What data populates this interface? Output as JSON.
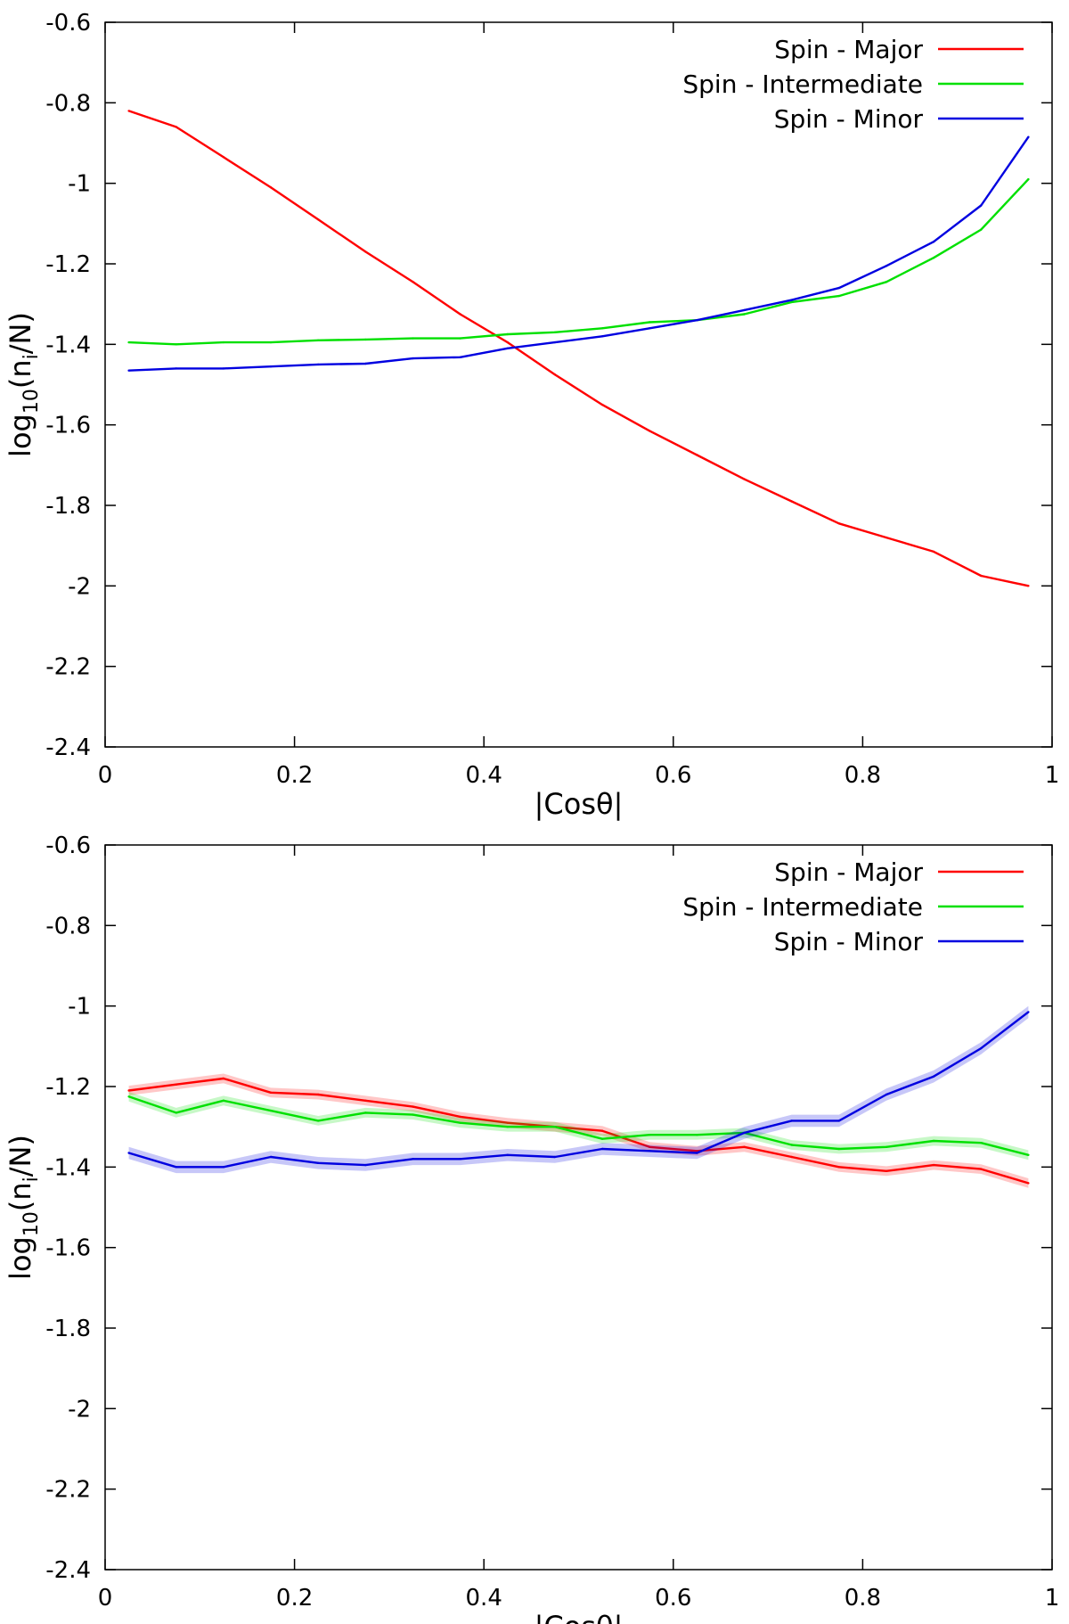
{
  "chart_data": [
    {
      "type": "line",
      "title": "",
      "xlabel": "|Cosθ|",
      "ylabel_main": "log",
      "ylabel_sub": "10",
      "ylabel_open": "(n",
      "ylabel_isub": "i",
      "ylabel_close": "/N)",
      "xlim": [
        0,
        1
      ],
      "ylim": [
        -2.4,
        -0.6
      ],
      "xticks": [
        "0",
        "0.2",
        "0.4",
        "0.6",
        "0.8",
        "1"
      ],
      "yticks": [
        "-0.6",
        "-0.8",
        "-1",
        "-1.2",
        "-1.4",
        "-1.6",
        "-1.8",
        "-2",
        "-2.2",
        "-2.4"
      ],
      "legend_position": "top-right",
      "x": [
        0.025,
        0.075,
        0.125,
        0.175,
        0.225,
        0.275,
        0.325,
        0.375,
        0.425,
        0.475,
        0.525,
        0.575,
        0.625,
        0.675,
        0.725,
        0.775,
        0.825,
        0.875,
        0.925,
        0.975
      ],
      "series": [
        {
          "name": "Spin - Major",
          "color": "#ff0000",
          "values": [
            -0.82,
            -0.86,
            -0.935,
            -1.01,
            -1.09,
            -1.17,
            -1.245,
            -1.325,
            -1.395,
            -1.475,
            -1.55,
            -1.615,
            -1.675,
            -1.735,
            -1.79,
            -1.845,
            -1.88,
            -1.915,
            -1.975,
            -2.0
          ]
        },
        {
          "name": "Spin - Intermediate",
          "color": "#00e000",
          "values": [
            -1.395,
            -1.4,
            -1.395,
            -1.395,
            -1.39,
            -1.388,
            -1.385,
            -1.385,
            -1.375,
            -1.37,
            -1.36,
            -1.345,
            -1.34,
            -1.325,
            -1.295,
            -1.28,
            -1.245,
            -1.185,
            -1.115,
            -0.99
          ]
        },
        {
          "name": "Spin - Minor",
          "color": "#0000e0",
          "values": [
            -1.465,
            -1.46,
            -1.46,
            -1.455,
            -1.45,
            -1.448,
            -1.435,
            -1.432,
            -1.41,
            -1.395,
            -1.38,
            -1.36,
            -1.34,
            -1.315,
            -1.29,
            -1.26,
            -1.205,
            -1.145,
            -1.055,
            -0.885
          ]
        }
      ]
    },
    {
      "type": "line",
      "title": "",
      "xlabel": "|Cosθ|",
      "ylabel_main": "log",
      "ylabel_sub": "10",
      "ylabel_open": "(n",
      "ylabel_isub": "i",
      "ylabel_close": "/N)",
      "xlim": [
        0,
        1
      ],
      "ylim": [
        -2.4,
        -0.6
      ],
      "xticks": [
        "0",
        "0.2",
        "0.4",
        "0.6",
        "0.8",
        "1"
      ],
      "yticks": [
        "-0.6",
        "-0.8",
        "-1",
        "-1.2",
        "-1.4",
        "-1.6",
        "-1.8",
        "-2",
        "-2.2",
        "-2.4"
      ],
      "legend_position": "top-right",
      "x": [
        0.025,
        0.075,
        0.125,
        0.175,
        0.225,
        0.275,
        0.325,
        0.375,
        0.425,
        0.475,
        0.525,
        0.575,
        0.625,
        0.675,
        0.725,
        0.775,
        0.825,
        0.875,
        0.925,
        0.975
      ],
      "series": [
        {
          "name": "Spin - Major",
          "color": "#ff0000",
          "band": 0.012,
          "values": [
            -1.21,
            -1.195,
            -1.18,
            -1.215,
            -1.22,
            -1.235,
            -1.25,
            -1.275,
            -1.29,
            -1.3,
            -1.31,
            -1.35,
            -1.36,
            -1.35,
            -1.375,
            -1.4,
            -1.41,
            -1.395,
            -1.405,
            -1.44
          ]
        },
        {
          "name": "Spin - Intermediate",
          "color": "#00e000",
          "band": 0.012,
          "values": [
            -1.225,
            -1.265,
            -1.235,
            -1.26,
            -1.285,
            -1.265,
            -1.27,
            -1.29,
            -1.3,
            -1.3,
            -1.33,
            -1.32,
            -1.32,
            -1.315,
            -1.345,
            -1.355,
            -1.35,
            -1.335,
            -1.34,
            -1.37
          ]
        },
        {
          "name": "Spin - Minor",
          "color": "#0000e0",
          "band": 0.015,
          "values": [
            -1.365,
            -1.4,
            -1.4,
            -1.375,
            -1.39,
            -1.395,
            -1.38,
            -1.38,
            -1.37,
            -1.375,
            -1.355,
            -1.36,
            -1.365,
            -1.315,
            -1.285,
            -1.285,
            -1.22,
            -1.175,
            -1.105,
            -1.015
          ]
        }
      ]
    }
  ]
}
